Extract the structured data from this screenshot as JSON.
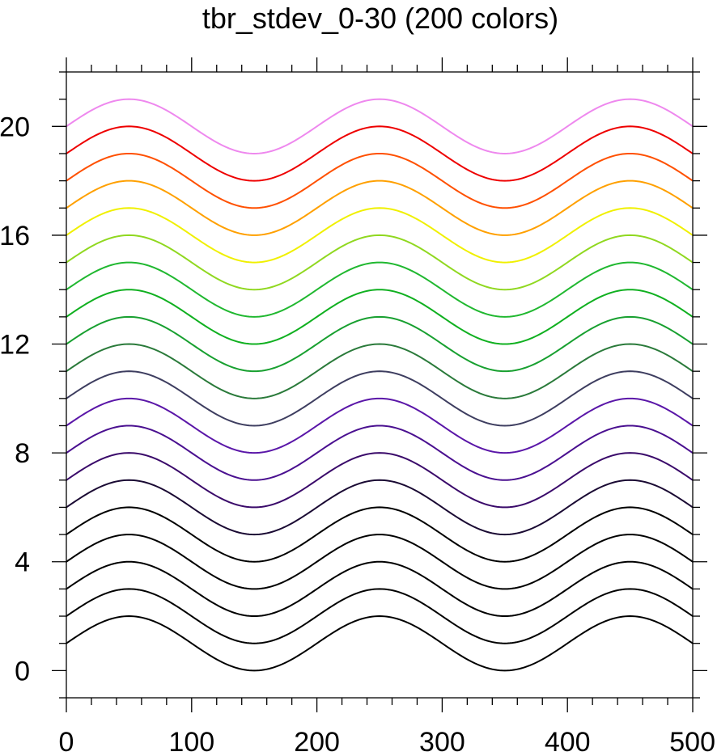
{
  "chart_data": {
    "type": "line",
    "title": "tbr_stdev_0-30 (200 colors)",
    "xlabel": "",
    "ylabel": "",
    "xlim": [
      0,
      500
    ],
    "ylim": [
      -1,
      22
    ],
    "x_ticks": [
      0,
      100,
      200,
      300,
      400,
      500
    ],
    "x_tick_labels": [
      "0",
      "100",
      "200",
      "300",
      "400",
      "500"
    ],
    "y_ticks": [
      0,
      4,
      8,
      12,
      16,
      20
    ],
    "y_tick_labels": [
      "0",
      "4",
      "8",
      "12",
      "16",
      "20"
    ],
    "x_minor_step": 20,
    "y_minor_step": 1,
    "grid": false,
    "legend": "none",
    "curve": {
      "formula": "y = offset + sin(2*pi*x/200)",
      "x_start": 0,
      "x_end": 500,
      "amplitude": 1,
      "period": 200
    },
    "series": [
      {
        "offset": 1,
        "color": "#000000"
      },
      {
        "offset": 2,
        "color": "#000000"
      },
      {
        "offset": 3,
        "color": "#000000"
      },
      {
        "offset": 4,
        "color": "#000000"
      },
      {
        "offset": 5,
        "color": "#000000"
      },
      {
        "offset": 6,
        "color": "#1a0a33"
      },
      {
        "offset": 7,
        "color": "#3a0a6a"
      },
      {
        "offset": 8,
        "color": "#4a1090"
      },
      {
        "offset": 9,
        "color": "#5a16a8"
      },
      {
        "offset": 10,
        "color": "#3e3e60"
      },
      {
        "offset": 11,
        "color": "#2a7a3a"
      },
      {
        "offset": 12,
        "color": "#18a030"
      },
      {
        "offset": 13,
        "color": "#10b020"
      },
      {
        "offset": 14,
        "color": "#20b830"
      },
      {
        "offset": 15,
        "color": "#90d820"
      },
      {
        "offset": 16,
        "color": "#f0f000"
      },
      {
        "offset": 17,
        "color": "#ffa000"
      },
      {
        "offset": 18,
        "color": "#ff5000"
      },
      {
        "offset": 19,
        "color": "#ee0000"
      },
      {
        "offset": 20,
        "color": "#ee88ee"
      }
    ]
  }
}
